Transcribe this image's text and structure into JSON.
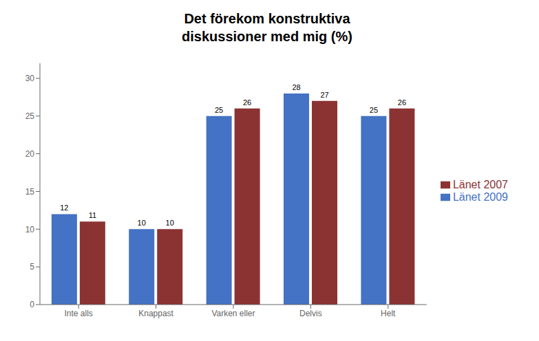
{
  "chart_data": {
    "type": "bar",
    "title": "Det förekom konstruktiva\ndiskussioner med mig (%)",
    "categories": [
      "Inte alls",
      "Knappast",
      "Varken eller",
      "Delvis",
      "Helt"
    ],
    "series": [
      {
        "name": "Länet 2009",
        "color": "#4472C4",
        "values": [
          12,
          10,
          25,
          28,
          25
        ]
      },
      {
        "name": "Länet 2007",
        "color": "#8B3333",
        "values": [
          11,
          10,
          26,
          27,
          26
        ]
      }
    ],
    "ylim": [
      0,
      32
    ],
    "yticks": [
      0,
      5,
      10,
      15,
      20,
      25,
      30
    ],
    "data_labels": true,
    "grid": false,
    "legend": "right"
  }
}
